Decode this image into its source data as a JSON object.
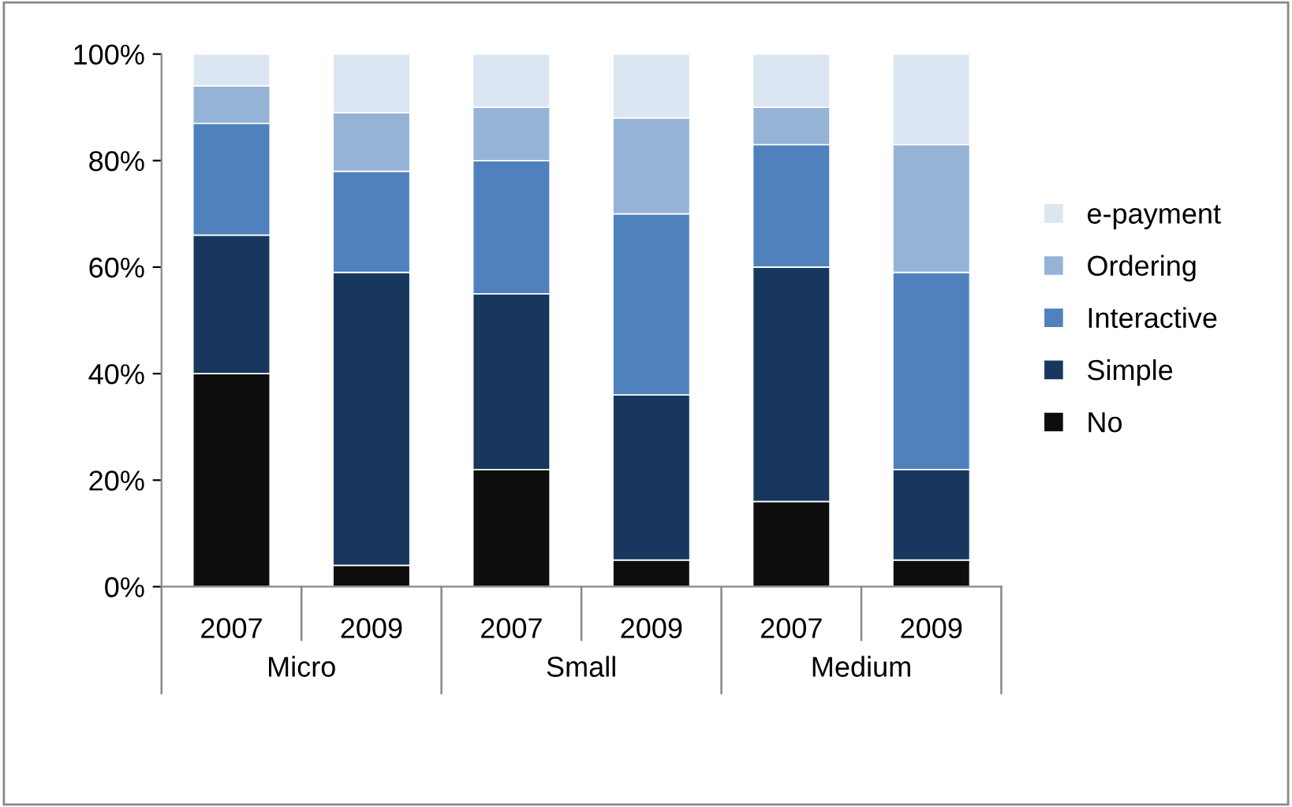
{
  "chart_data": {
    "type": "bar",
    "stacked": true,
    "categories": [
      "2007",
      "2009",
      "2007",
      "2009",
      "2007",
      "2009"
    ],
    "series": [
      {
        "name": "No",
        "color": "#0d0d0d",
        "values": [
          40,
          4,
          22,
          5,
          16,
          5
        ]
      },
      {
        "name": "Simple",
        "color": "#17375e",
        "values": [
          26,
          55,
          33,
          31,
          44,
          17
        ]
      },
      {
        "name": "Interactive",
        "color": "#4f81bd",
        "values": [
          21,
          19,
          25,
          34,
          23,
          37
        ]
      },
      {
        "name": "Ordering",
        "color": "#95b3d7",
        "values": [
          7,
          11,
          10,
          18,
          7,
          24
        ]
      },
      {
        "name": "e-payment",
        "color": "#dce6f2",
        "values": [
          6,
          11,
          10,
          12,
          10,
          17
        ]
      }
    ],
    "annotations": [
      "Micro",
      "Small",
      "Medium"
    ],
    "ylim": [
      0,
      100
    ],
    "yticks": [
      {
        "value": 0,
        "label": "0%"
      },
      {
        "value": 20,
        "label": "20%"
      },
      {
        "value": 40,
        "label": "40%"
      },
      {
        "value": 60,
        "label": "60%"
      },
      {
        "value": 80,
        "label": "80%"
      },
      {
        "value": 100,
        "label": "100%"
      }
    ],
    "grid": false,
    "legend": "right"
  }
}
